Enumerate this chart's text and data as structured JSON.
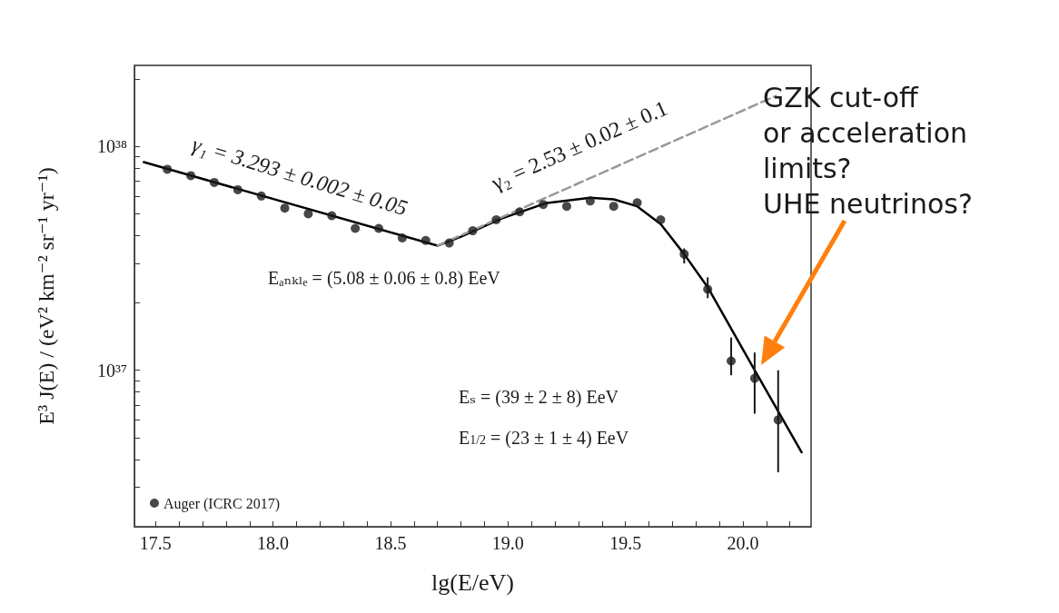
{
  "chart_data": {
    "type": "scatter",
    "xlabel": "lg(E/eV)",
    "ylabel": "E³ J(E) / (eV² km⁻² sr⁻¹ yr⁻¹)",
    "log": "y",
    "grid": false,
    "legend": "bottom left",
    "xlim": [
      17.41,
      20.29
    ],
    "ylim": [
      2e+36,
      2.3e+38
    ],
    "xticks": [
      {
        "value": 17.5,
        "label": "17.5"
      },
      {
        "value": 17.6,
        "label": null
      },
      {
        "value": 17.7,
        "label": null
      },
      {
        "value": 17.8,
        "label": null
      },
      {
        "value": 17.9,
        "label": null
      },
      {
        "value": 18,
        "label": "18.0"
      },
      {
        "value": 18.1,
        "label": null
      },
      {
        "value": 18.2,
        "label": null
      },
      {
        "value": 18.3,
        "label": null
      },
      {
        "value": 18.4,
        "label": null
      },
      {
        "value": 18.5,
        "label": "18.5"
      },
      {
        "value": 18.6,
        "label": null
      },
      {
        "value": 18.7,
        "label": null
      },
      {
        "value": 18.8,
        "label": null
      },
      {
        "value": 18.9,
        "label": null
      },
      {
        "value": 19,
        "label": "19.0"
      },
      {
        "value": 19.1,
        "label": null
      },
      {
        "value": 19.2,
        "label": null
      },
      {
        "value": 19.3,
        "label": null
      },
      {
        "value": 19.4,
        "label": null
      },
      {
        "value": 19.5,
        "label": "19.5"
      },
      {
        "value": 19.6,
        "label": null
      },
      {
        "value": 19.7,
        "label": null
      },
      {
        "value": 19.8,
        "label": null
      },
      {
        "value": 19.9,
        "label": null
      },
      {
        "value": 20,
        "label": "20.0"
      },
      {
        "value": 20.1,
        "label": null
      },
      {
        "value": 20.2,
        "label": null
      }
    ],
    "yticks": [
      {
        "value": 2e+36,
        "label": null
      },
      {
        "value": 3e+36,
        "label": null
      },
      {
        "value": 4e+36,
        "label": null
      },
      {
        "value": 5e+36,
        "label": null
      },
      {
        "value": 6e+36,
        "label": null
      },
      {
        "value": 7e+36,
        "label": null
      },
      {
        "value": 8e+36,
        "label": null
      },
      {
        "value": 9e+36,
        "label": null
      },
      {
        "value": 1e+37,
        "label": "10³⁷"
      },
      {
        "value": 2e+37,
        "label": null
      },
      {
        "value": 3e+37,
        "label": null
      },
      {
        "value": 4e+37,
        "label": null
      },
      {
        "value": 5e+37,
        "label": null
      },
      {
        "value": 6e+37,
        "label": null
      },
      {
        "value": 7e+37,
        "label": null
      },
      {
        "value": 8e+37,
        "label": null
      },
      {
        "value": 9e+37,
        "label": null
      },
      {
        "value": 1e+38,
        "label": "10³⁸"
      },
      {
        "value": 2e+38,
        "label": null
      }
    ],
    "series": [
      {
        "name": "Auger (ICRC 2017)",
        "type": "scatter",
        "marker": "circle",
        "color": "#1a1a1a",
        "x": [
          17.55,
          17.65,
          17.75,
          17.85,
          17.95,
          18.05,
          18.15,
          18.25,
          18.35,
          18.45,
          18.55,
          18.65,
          18.75,
          18.85,
          18.95,
          19.05,
          19.15,
          19.25,
          19.35,
          19.45,
          19.55,
          19.65,
          19.75,
          19.85,
          19.95,
          20.05,
          20.15
        ],
        "values": [
          7.9e+37,
          7.4e+37,
          6.9e+37,
          6.4e+37,
          6e+37,
          5.3e+37,
          5e+37,
          4.9e+37,
          4.3e+37,
          4.3e+37,
          3.9e+37,
          3.8e+37,
          3.7e+37,
          4.2e+37,
          4.7e+37,
          5.1e+37,
          5.5e+37,
          5.4e+37,
          5.7e+37,
          5.4e+37,
          5.6e+37,
          4.7e+37,
          3.3e+37,
          2.3e+37,
          1.1e+37,
          9.2e+36,
          6e+36
        ],
        "errors": [
          null,
          null,
          null,
          null,
          null,
          null,
          null,
          null,
          null,
          null,
          null,
          null,
          null,
          null,
          null,
          null,
          null,
          null,
          null,
          null,
          null,
          null,
          [
            3e+37,
            3.5e+37
          ],
          [
            2.1e+37,
            2.6e+37
          ],
          [
            9.5e+36,
            1.4e+37
          ],
          [
            6.4e+36,
            1.2e+37
          ],
          [
            3.5e+36,
            1e+37
          ]
        ]
      },
      {
        "type": "line",
        "marker": "none",
        "line_style": "solid",
        "color": "#000000",
        "x": [
          17.45,
          18.7,
          18.8,
          18.97,
          19.16,
          19.35,
          19.45,
          19.55,
          19.65,
          19.75,
          19.85,
          20.05,
          20.25
        ],
        "values": [
          8.5e+37,
          3.6e+37,
          3.95e+37,
          4.75e+37,
          5.57e+37,
          5.9e+37,
          5.8e+37,
          5.4e+37,
          4.5e+37,
          3.3e+37,
          2.35e+37,
          1e+37,
          4.3e+36
        ]
      },
      {
        "type": "line",
        "marker": "none",
        "line_style": "dashed",
        "color": "#999999",
        "x": [
          18.7,
          20.14
        ],
        "values": [
          3.6e+37,
          1.68e+38
        ]
      }
    ],
    "annotations": [
      "γ₁ = 3.293 ± 0.002 ± 0.05",
      "γ₂ = 2.53 ± 0.02 ± 0.1",
      "Eₐₙₖₗₑ = (5.08 ± 0.06 ± 0.8) EeV",
      "Eₛ = (39 ± 2 ± 8) EeV",
      "E$_{1/2}$ = (23 ± 1 ± 4) EeV",
      "GZK cut-off\nor acceleration\nlimits?\nUHE neutrinos?"
    ]
  }
}
